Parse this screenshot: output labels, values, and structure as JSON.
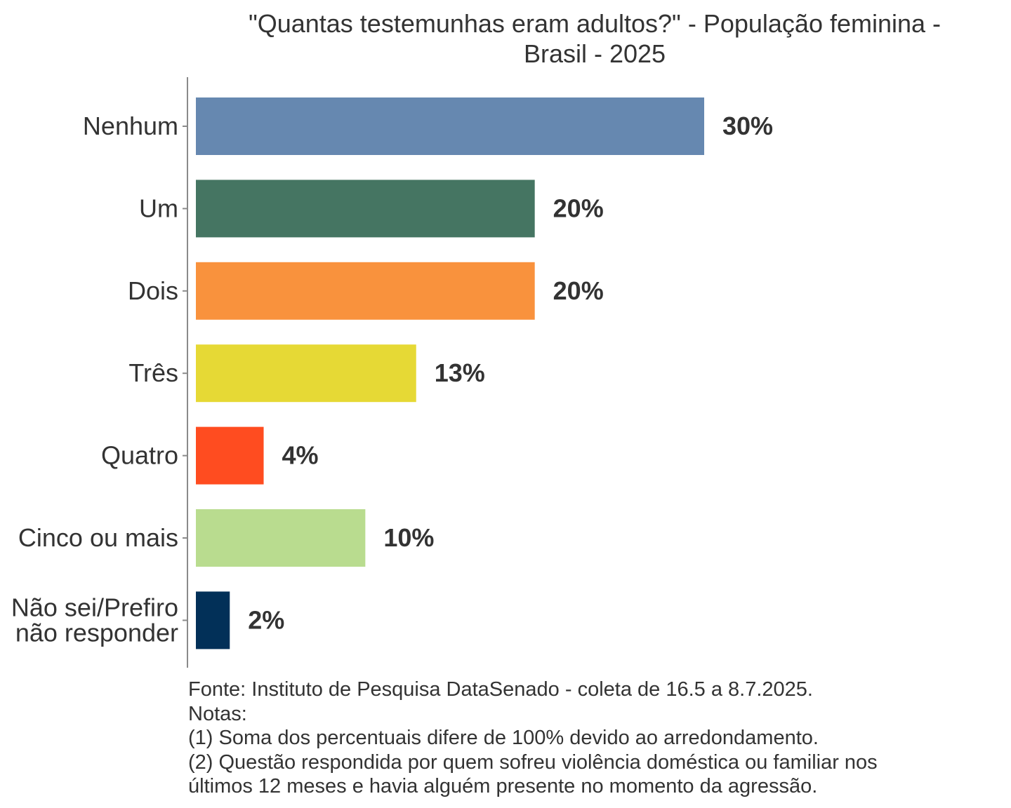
{
  "chart_data": {
    "type": "bar",
    "orientation": "horizontal",
    "title": "\"Quantas testemunhas eram adultos?\" - População feminina - Brasil - 2025",
    "title_lines": [
      "\"Quantas testemunhas eram adultos?\" - População feminina -",
      "Brasil - 2025"
    ],
    "categories": [
      "Nenhum",
      "Um",
      "Dois",
      "Três",
      "Quatro",
      "Cinco ou mais",
      "Não sei/Prefiro não responder"
    ],
    "category_lines": [
      [
        "Nenhum"
      ],
      [
        "Um"
      ],
      [
        "Dois"
      ],
      [
        "Três"
      ],
      [
        "Quatro"
      ],
      [
        "Cinco ou mais"
      ],
      [
        "Não sei/Prefiro",
        "não responder"
      ]
    ],
    "values": [
      30,
      20,
      20,
      13,
      4,
      10,
      2
    ],
    "data_labels": [
      "30%",
      "20%",
      "20%",
      "13%",
      "4%",
      "10%",
      "2%"
    ],
    "colors": [
      "#6688B0",
      "#457562",
      "#F9923D",
      "#E6D935",
      "#FF4C20",
      "#B9DC8F",
      "#023058"
    ],
    "xlabel": "",
    "ylabel": "",
    "xlim": [
      0,
      45
    ],
    "grid": false,
    "legend": "none"
  },
  "footer": {
    "source": "Fonte: Instituto de Pesquisa DataSenado - coleta de 16.5 a 8.7.2025.",
    "notes_label": "Notas:",
    "note1": "(1) Soma dos percentuais difere de 100% devido ao arredondamento.",
    "note2_line1": "(2) Questão respondida por quem sofreu violência doméstica ou familiar nos",
    "note2_line2": "últimos 12 meses e havia alguém presente no momento da agressão."
  }
}
